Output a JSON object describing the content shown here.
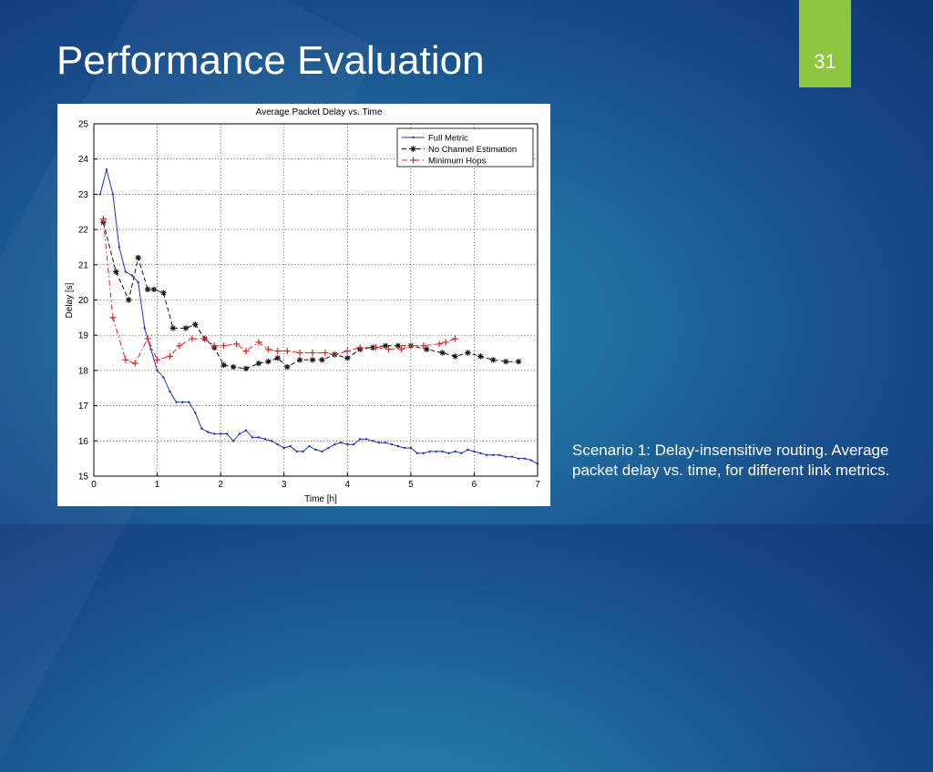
{
  "slide": {
    "title": "Performance Evaluation",
    "number": "31",
    "caption": "Scenario 1: Delay-insensitive routing. Average packet delay vs. time, for different link metrics.",
    "accent_color": "#8dc63f"
  },
  "chart_data": {
    "type": "line",
    "title": "Average Packet Delay vs. Time",
    "xlabel": "Time [h]",
    "ylabel": "Delay [s]",
    "xlim": [
      0,
      7
    ],
    "ylim": [
      15,
      25
    ],
    "xticks": [
      0,
      1,
      2,
      3,
      4,
      5,
      6,
      7
    ],
    "yticks": [
      15,
      16,
      17,
      18,
      19,
      20,
      21,
      22,
      23,
      24,
      25
    ],
    "grid": true,
    "legend_position": "top-right",
    "series": [
      {
        "name": "Full Metric",
        "color": "#1f2fc8",
        "line_style": "solid",
        "marker": "dot",
        "x": [
          0.1,
          0.2,
          0.3,
          0.4,
          0.5,
          0.6,
          0.7,
          0.8,
          0.9,
          1.0,
          1.1,
          1.2,
          1.3,
          1.4,
          1.5,
          1.6,
          1.7,
          1.8,
          1.9,
          2.0,
          2.1,
          2.2,
          2.3,
          2.4,
          2.5,
          2.6,
          2.7,
          2.8,
          2.9,
          3.0,
          3.1,
          3.2,
          3.3,
          3.4,
          3.5,
          3.6,
          3.7,
          3.8,
          3.9,
          4.0,
          4.1,
          4.2,
          4.3,
          4.4,
          4.5,
          4.6,
          4.7,
          4.8,
          4.9,
          5.0,
          5.1,
          5.2,
          5.3,
          5.4,
          5.5,
          5.6,
          5.7,
          5.8,
          5.9,
          6.0,
          6.1,
          6.2,
          6.3,
          6.4,
          6.5,
          6.6,
          6.7,
          6.8,
          6.9,
          7.0
        ],
        "y": [
          23.0,
          23.7,
          23.0,
          21.5,
          20.8,
          20.7,
          20.5,
          19.2,
          18.6,
          18.0,
          17.8,
          17.4,
          17.1,
          17.1,
          17.1,
          16.8,
          16.35,
          16.25,
          16.2,
          16.2,
          16.2,
          16.0,
          16.2,
          16.3,
          16.1,
          16.1,
          16.05,
          16.0,
          15.9,
          15.8,
          15.85,
          15.7,
          15.7,
          15.85,
          15.75,
          15.7,
          15.8,
          15.9,
          15.95,
          15.9,
          15.9,
          16.05,
          16.05,
          16.0,
          15.95,
          15.95,
          15.9,
          15.85,
          15.8,
          15.8,
          15.65,
          15.65,
          15.7,
          15.7,
          15.7,
          15.65,
          15.7,
          15.65,
          15.75,
          15.7,
          15.65,
          15.6,
          15.6,
          15.6,
          15.55,
          15.55,
          15.5,
          15.5,
          15.45,
          15.35
        ]
      },
      {
        "name": "No Channel Estimation",
        "color": "#111111",
        "line_style": "dashed",
        "marker": "star",
        "x": [
          0.15,
          0.35,
          0.55,
          0.7,
          0.85,
          0.95,
          1.1,
          1.25,
          1.45,
          1.6,
          1.75,
          1.9,
          2.05,
          2.2,
          2.4,
          2.6,
          2.75,
          2.9,
          3.05,
          3.25,
          3.45,
          3.6,
          3.8,
          4.0,
          4.2,
          4.4,
          4.6,
          4.8,
          5.0,
          5.25,
          5.5,
          5.7,
          5.9,
          6.1,
          6.3,
          6.5,
          6.7
        ],
        "y": [
          22.2,
          20.8,
          20.0,
          21.2,
          20.3,
          20.3,
          20.2,
          19.2,
          19.2,
          19.3,
          18.9,
          18.65,
          18.15,
          18.1,
          18.05,
          18.2,
          18.25,
          18.35,
          18.1,
          18.3,
          18.3,
          18.3,
          18.45,
          18.35,
          18.6,
          18.65,
          18.7,
          18.7,
          18.7,
          18.6,
          18.5,
          18.4,
          18.5,
          18.4,
          18.3,
          18.25,
          18.25
        ]
      },
      {
        "name": "Minimum Hops",
        "color": "#e02020",
        "line_style": "dashdot",
        "marker": "plus",
        "x": [
          0.15,
          0.3,
          0.5,
          0.65,
          0.85,
          1.0,
          1.2,
          1.35,
          1.55,
          1.75,
          1.9,
          2.05,
          2.25,
          2.4,
          2.6,
          2.75,
          2.9,
          3.05,
          3.25,
          3.45,
          3.65,
          3.8,
          4.0,
          4.2,
          4.45,
          4.65,
          4.85,
          5.0,
          5.2,
          5.45,
          5.55,
          5.7
        ],
        "y": [
          22.3,
          19.5,
          18.3,
          18.2,
          18.9,
          18.3,
          18.4,
          18.7,
          18.9,
          18.9,
          18.7,
          18.7,
          18.75,
          18.55,
          18.8,
          18.6,
          18.55,
          18.55,
          18.5,
          18.5,
          18.5,
          18.45,
          18.55,
          18.65,
          18.65,
          18.6,
          18.6,
          18.7,
          18.7,
          18.75,
          18.8,
          18.9
        ]
      }
    ]
  }
}
